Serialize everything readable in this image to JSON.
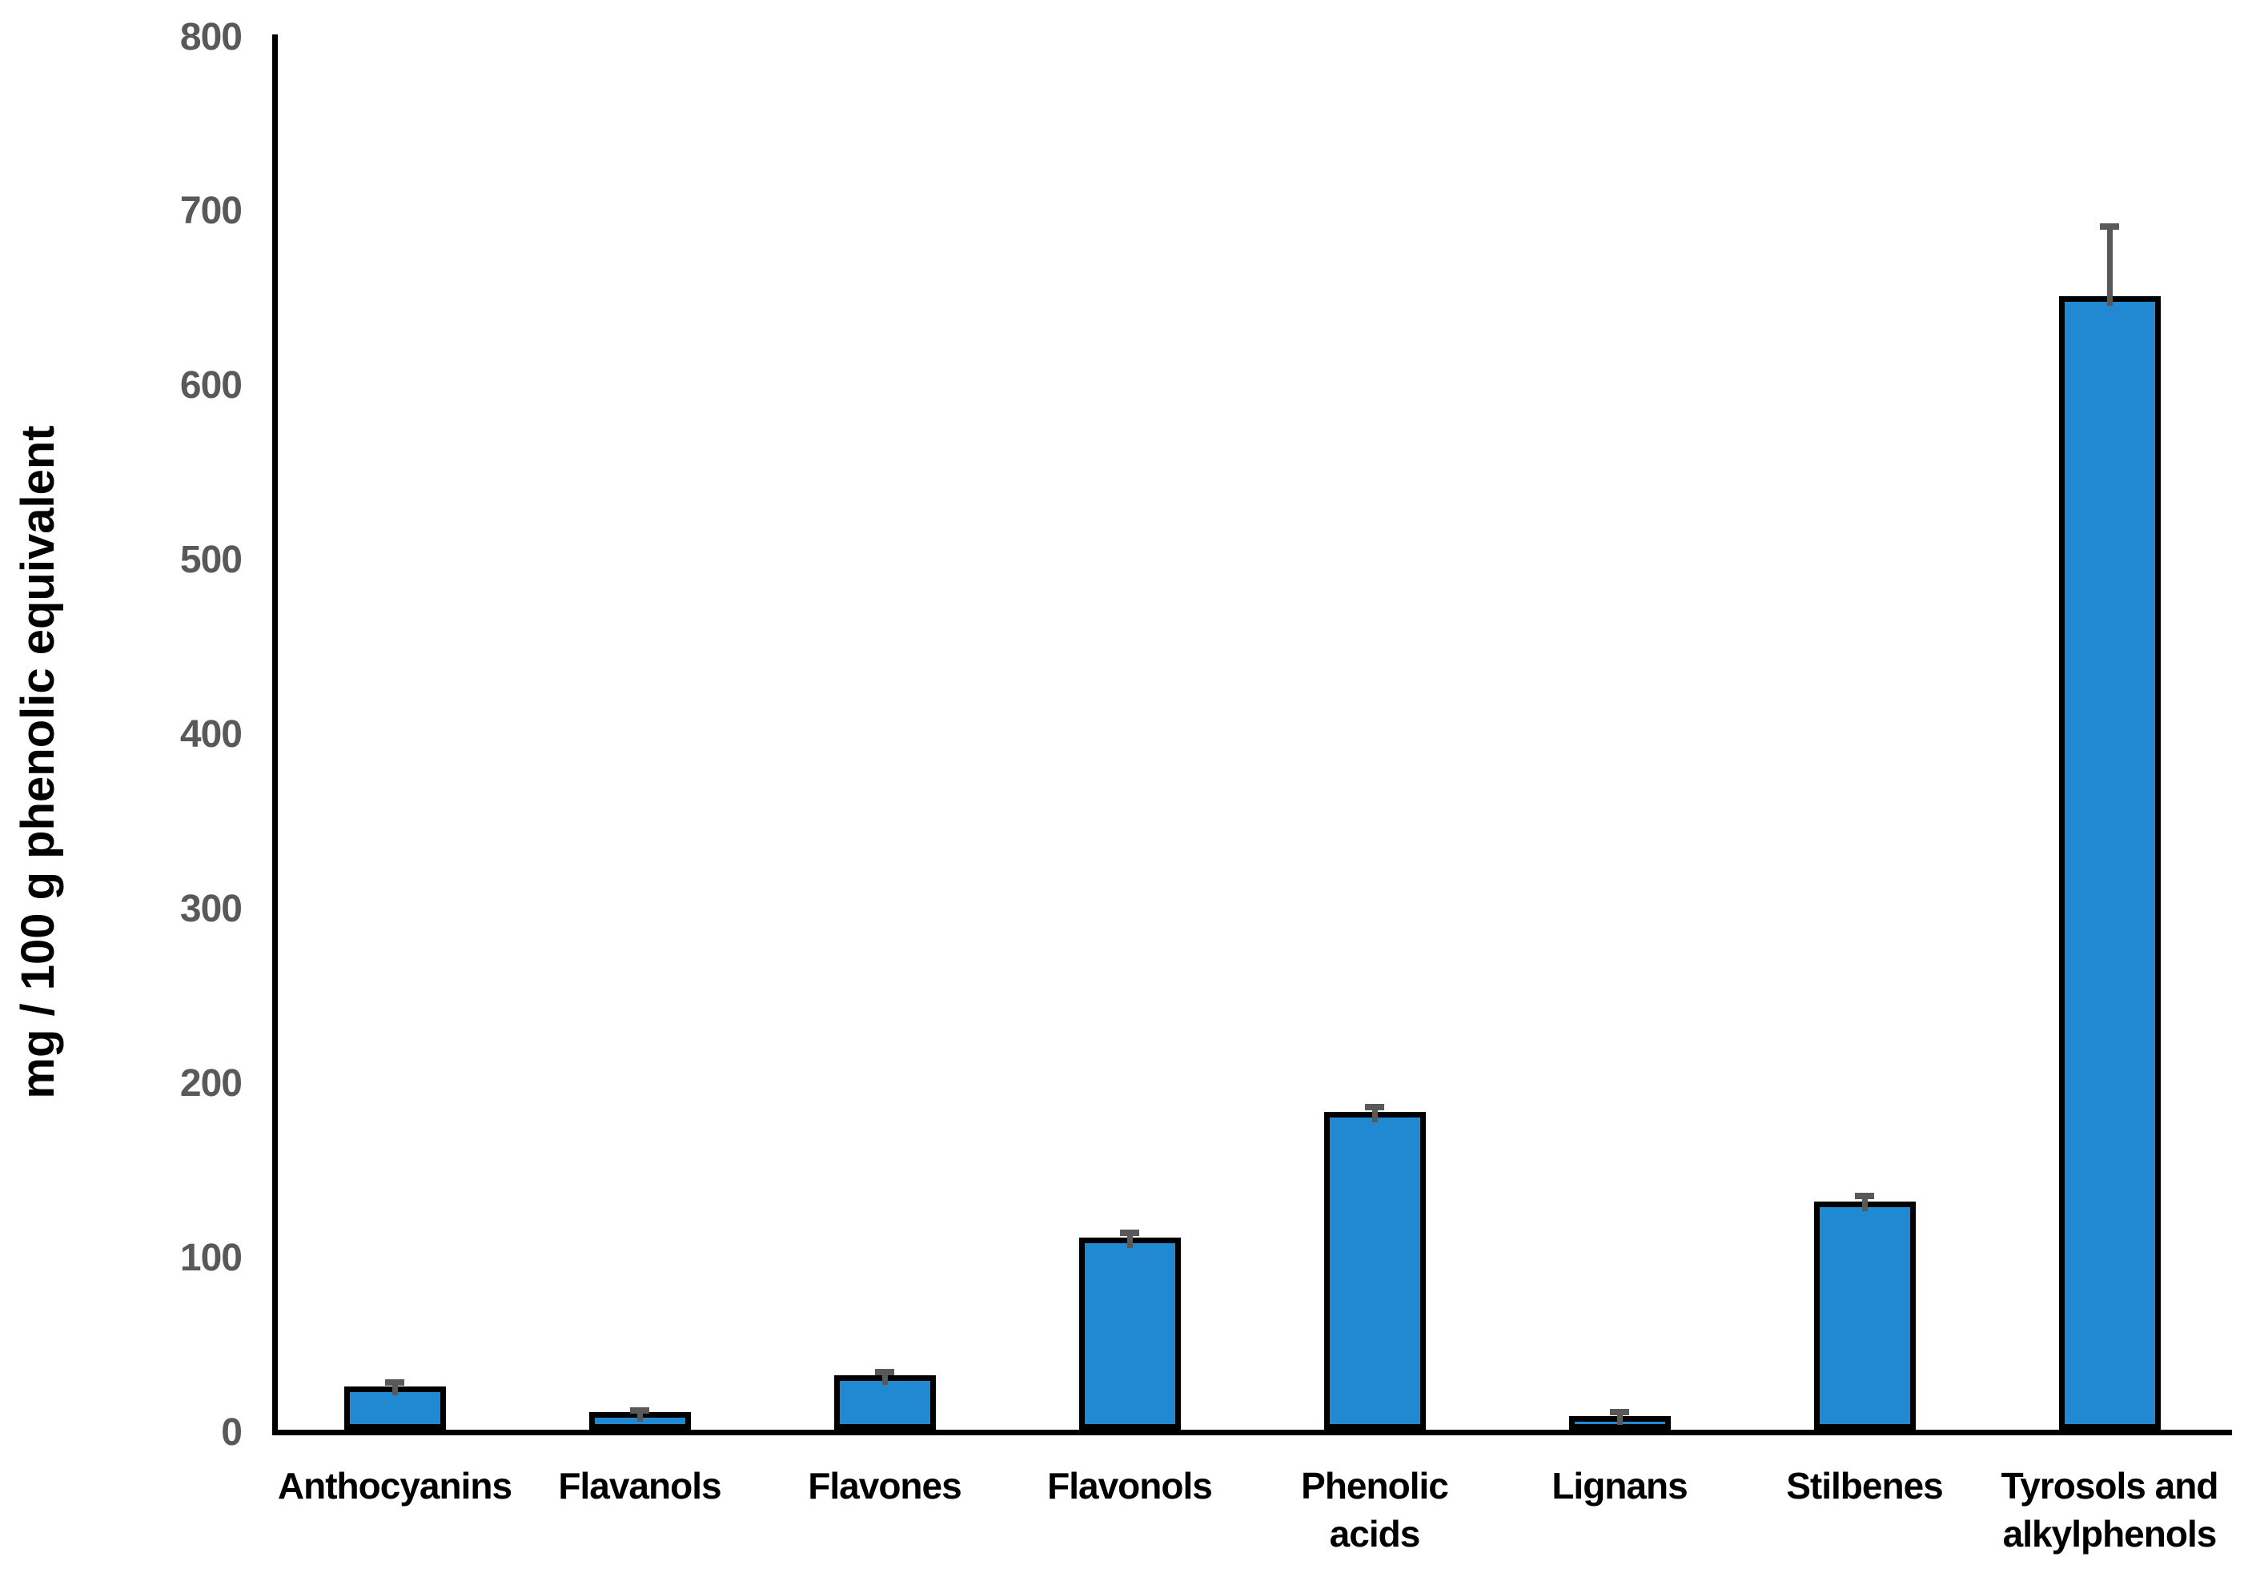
{
  "chart_data": {
    "type": "bar",
    "title": "",
    "xlabel": "",
    "ylabel": "mg / 100 g phenolic equivalent",
    "ylim": [
      0,
      800
    ],
    "ytick_interval": 100,
    "yticks": [
      0,
      100,
      200,
      300,
      400,
      500,
      600,
      700,
      800
    ],
    "grid": false,
    "legend_position": "none",
    "categories": [
      "Anthocyanins",
      "Flavanols",
      "Flavones",
      "Flavonols",
      "Phenolic acids",
      "Lignans",
      "Stilbenes",
      "Tyrosols and alkylphenols"
    ],
    "category_display_lines": [
      [
        "Anthocyanins"
      ],
      [
        "Flavanols"
      ],
      [
        "Flavones"
      ],
      [
        "Flavonols"
      ],
      [
        "Phenolic",
        "acids"
      ],
      [
        "Lignans"
      ],
      [
        "Stilbenes"
      ],
      [
        "Tyrosols and",
        "alkylphenols"
      ]
    ],
    "values": [
      25,
      10,
      31,
      110,
      182,
      8,
      131,
      650
    ],
    "errors_plus": [
      2,
      1,
      2,
      3,
      3,
      2,
      3,
      40
    ],
    "bar_fill_color": "#2189D2",
    "bar_border_color": "#000000",
    "error_bar_color": "#595959",
    "axis_color": "#000000",
    "tick_label_color": "#595959",
    "category_label_color": "#000000"
  }
}
